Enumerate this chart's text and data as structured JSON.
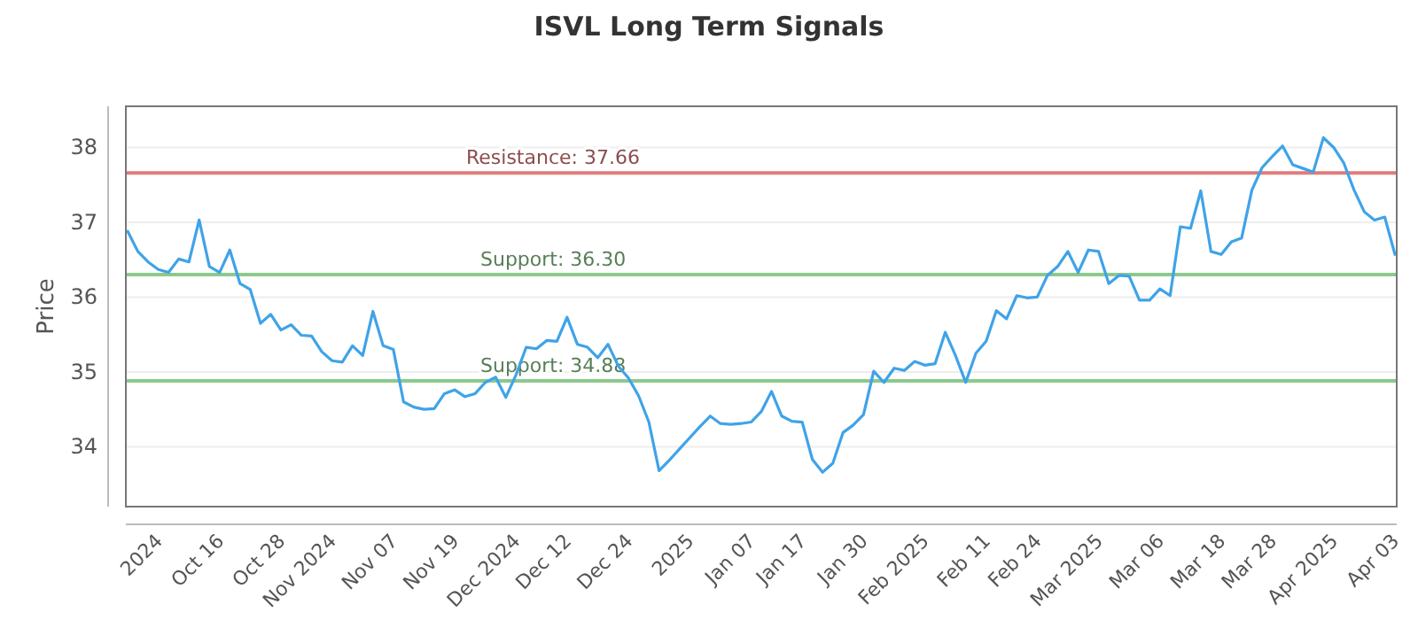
{
  "chart_data": {
    "type": "line",
    "title": "ISVL Long Term Signals",
    "ylabel": "Price",
    "categories": [
      null,
      null,
      null,
      "2024",
      null,
      null,
      null,
      null,
      null,
      "Oct 16",
      null,
      null,
      null,
      null,
      null,
      "Oct 28",
      null,
      null,
      null,
      null,
      "Nov 2024",
      null,
      null,
      null,
      null,
      null,
      "Nov 07",
      null,
      null,
      null,
      null,
      null,
      "Nov 19",
      null,
      null,
      null,
      null,
      null,
      "Dec 2024",
      null,
      null,
      null,
      null,
      "Dec 12",
      null,
      null,
      null,
      null,
      null,
      "Dec 24",
      null,
      null,
      null,
      null,
      null,
      "2025",
      null,
      null,
      null,
      null,
      null,
      "Jan 07",
      null,
      null,
      null,
      null,
      "Jan 17",
      null,
      null,
      null,
      null,
      null,
      "Jan 30",
      null,
      null,
      null,
      null,
      null,
      "Feb 2025",
      null,
      null,
      null,
      null,
      null,
      "Feb 11",
      null,
      null,
      null,
      null,
      "Feb 24",
      null,
      null,
      null,
      null,
      null,
      "Mar 2025",
      null,
      null,
      null,
      null,
      null,
      "Mar 06",
      null,
      null,
      null,
      null,
      null,
      "Mar 18",
      null,
      null,
      null,
      null,
      "Mar 28",
      null,
      null,
      null,
      null,
      null,
      "Apr 2025",
      null,
      null,
      null,
      null,
      null,
      "Apr 03"
    ],
    "series": [
      {
        "color": "#3fa3e8",
        "values": [
          36.88,
          36.61,
          36.47,
          36.37,
          36.33,
          36.51,
          36.47,
          37.03,
          36.41,
          36.33,
          36.63,
          36.18,
          36.1,
          35.65,
          35.77,
          35.56,
          35.63,
          35.49,
          35.48,
          35.27,
          35.15,
          35.13,
          35.35,
          35.22,
          35.81,
          35.35,
          35.3,
          34.6,
          34.53,
          34.5,
          34.51,
          34.71,
          34.76,
          34.67,
          34.71,
          34.86,
          34.93,
          34.66,
          34.96,
          35.33,
          35.31,
          35.42,
          35.41,
          35.73,
          35.37,
          35.33,
          35.19,
          35.37,
          35.08,
          34.92,
          34.68,
          34.33,
          33.68,
          33.82,
          33.97,
          34.12,
          34.27,
          34.41,
          34.31,
          34.3,
          34.31,
          34.33,
          34.47,
          34.74,
          34.41,
          34.34,
          34.33,
          33.83,
          33.66,
          33.78,
          34.19,
          34.29,
          34.43,
          35.01,
          34.86,
          35.05,
          35.02,
          35.14,
          35.09,
          35.11,
          35.53,
          35.22,
          34.86,
          35.25,
          35.41,
          35.82,
          35.71,
          36.02,
          35.99,
          36,
          36.29,
          36.41,
          36.61,
          36.33,
          36.63,
          36.61,
          36.18,
          36.29,
          36.28,
          35.96,
          35.96,
          36.11,
          36.02,
          36.94,
          36.92,
          37.42,
          36.61,
          36.57,
          36.74,
          36.79,
          37.43,
          37.73,
          37.88,
          38.02,
          37.77,
          37.72,
          37.67,
          38.13,
          38,
          37.79,
          37.43,
          37.14,
          37.03,
          37.07,
          36.57
        ]
      }
    ],
    "ylim": [
      33.2,
      38.55
    ],
    "yticks": [
      34,
      35,
      36,
      37,
      38
    ],
    "grid": "y",
    "line_style": "solid",
    "marker": "none",
    "ref_lines": [
      {
        "axis": "y",
        "value": 37.66,
        "label": "Resistance: 37.66",
        "color": "#e07b7b"
      },
      {
        "axis": "y",
        "value": 36.3,
        "label": "Support: 36.30",
        "color": "#8cc98c"
      },
      {
        "axis": "y",
        "value": 34.88,
        "label": "Support: 34.88",
        "color": "#8cc98c"
      }
    ]
  }
}
